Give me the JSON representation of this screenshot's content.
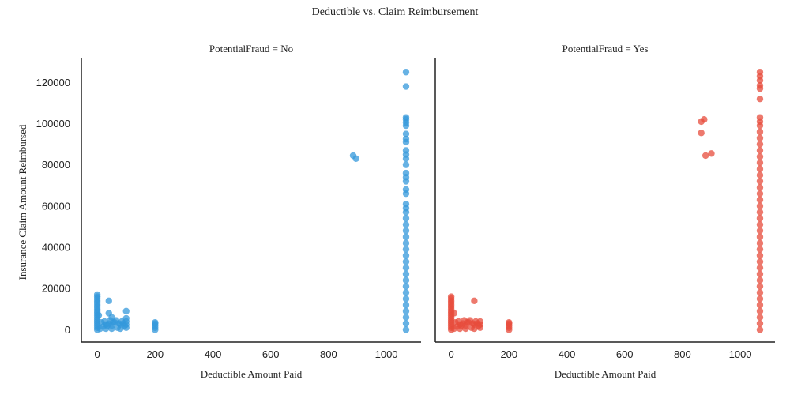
{
  "figure": {
    "title": "Deductible vs. Claim Reimbursement"
  },
  "chart_data": {
    "type": "scatter",
    "xlabel": "Deductible Amount Paid",
    "ylabel": "Insurance Claim Amount Reimbursed",
    "xlim": [
      -55,
      1120
    ],
    "ylim": [
      -6000,
      132000
    ],
    "xticks": [
      0,
      200,
      400,
      600,
      800,
      1000
    ],
    "yticks": [
      0,
      20000,
      40000,
      60000,
      80000,
      100000,
      120000
    ],
    "grid": false,
    "sharey": true,
    "panels": [
      {
        "title": "PotentialFraud = No",
        "color": "#3498db",
        "points": [
          [
            0,
            0
          ],
          [
            0,
            1000
          ],
          [
            0,
            2000
          ],
          [
            0,
            3000
          ],
          [
            0,
            4000
          ],
          [
            0,
            5000
          ],
          [
            0,
            6000
          ],
          [
            0,
            7000
          ],
          [
            0,
            8000
          ],
          [
            0,
            9000
          ],
          [
            0,
            10000
          ],
          [
            0,
            11000
          ],
          [
            0,
            12000
          ],
          [
            0,
            13000
          ],
          [
            0,
            14000
          ],
          [
            0,
            15000
          ],
          [
            0,
            16000
          ],
          [
            0,
            17000
          ],
          [
            5,
            7000
          ],
          [
            10,
            500
          ],
          [
            20,
            1500
          ],
          [
            30,
            2500
          ],
          [
            40,
            3000
          ],
          [
            50,
            2000
          ],
          [
            60,
            3500
          ],
          [
            70,
            1000
          ],
          [
            80,
            2500
          ],
          [
            90,
            3000
          ],
          [
            100,
            4000
          ],
          [
            15,
            3500
          ],
          [
            25,
            4000
          ],
          [
            35,
            2000
          ],
          [
            45,
            4500
          ],
          [
            55,
            3500
          ],
          [
            65,
            4500
          ],
          [
            75,
            3000
          ],
          [
            85,
            4000
          ],
          [
            95,
            2000
          ],
          [
            100,
            1000
          ],
          [
            100,
            2500
          ],
          [
            50,
            500
          ],
          [
            30,
            500
          ],
          [
            80,
            500
          ],
          [
            40,
            14000
          ],
          [
            40,
            8000
          ],
          [
            100,
            9000
          ],
          [
            100,
            5500
          ],
          [
            50,
            6000
          ],
          [
            200,
            0
          ],
          [
            200,
            1000
          ],
          [
            200,
            2000
          ],
          [
            200,
            3000
          ],
          [
            200,
            3500
          ],
          [
            885,
            84500
          ],
          [
            895,
            83000
          ],
          [
            1068,
            0
          ],
          [
            1068,
            3000
          ],
          [
            1068,
            6000
          ],
          [
            1068,
            9000
          ],
          [
            1068,
            12000
          ],
          [
            1068,
            15000
          ],
          [
            1068,
            18000
          ],
          [
            1068,
            21000
          ],
          [
            1068,
            24000
          ],
          [
            1068,
            27000
          ],
          [
            1068,
            30000
          ],
          [
            1068,
            33000
          ],
          [
            1068,
            36000
          ],
          [
            1068,
            39000
          ],
          [
            1068,
            42000
          ],
          [
            1068,
            45000
          ],
          [
            1068,
            48000
          ],
          [
            1068,
            51000
          ],
          [
            1068,
            54000
          ],
          [
            1068,
            57000
          ],
          [
            1068,
            59000
          ],
          [
            1068,
            61000
          ],
          [
            1068,
            66000
          ],
          [
            1068,
            68000
          ],
          [
            1068,
            72000
          ],
          [
            1068,
            74000
          ],
          [
            1068,
            76000
          ],
          [
            1068,
            80000
          ],
          [
            1068,
            83000
          ],
          [
            1068,
            85000
          ],
          [
            1068,
            87000
          ],
          [
            1068,
            91000
          ],
          [
            1068,
            92500
          ],
          [
            1068,
            95000
          ],
          [
            1068,
            99000
          ],
          [
            1068,
            100500
          ],
          [
            1068,
            102000
          ],
          [
            1068,
            103000
          ],
          [
            1068,
            118000
          ],
          [
            1068,
            125000
          ]
        ]
      },
      {
        "title": "PotentialFraud = Yes",
        "color": "#e74c3c",
        "points": [
          [
            0,
            0
          ],
          [
            0,
            1000
          ],
          [
            0,
            2000
          ],
          [
            0,
            3000
          ],
          [
            0,
            4000
          ],
          [
            0,
            5000
          ],
          [
            0,
            6000
          ],
          [
            0,
            7000
          ],
          [
            0,
            8000
          ],
          [
            0,
            9000
          ],
          [
            0,
            10000
          ],
          [
            0,
            11000
          ],
          [
            0,
            12000
          ],
          [
            0,
            13000
          ],
          [
            0,
            14000
          ],
          [
            0,
            15000
          ],
          [
            0,
            16000
          ],
          [
            10,
            8000
          ],
          [
            10,
            500
          ],
          [
            20,
            1500
          ],
          [
            30,
            2500
          ],
          [
            40,
            3000
          ],
          [
            50,
            2000
          ],
          [
            60,
            3500
          ],
          [
            70,
            1000
          ],
          [
            80,
            2500
          ],
          [
            90,
            3000
          ],
          [
            100,
            4000
          ],
          [
            15,
            3500
          ],
          [
            25,
            4000
          ],
          [
            35,
            2000
          ],
          [
            45,
            4500
          ],
          [
            55,
            3500
          ],
          [
            65,
            4500
          ],
          [
            75,
            3000
          ],
          [
            85,
            4000
          ],
          [
            95,
            2000
          ],
          [
            100,
            1000
          ],
          [
            100,
            2500
          ],
          [
            50,
            500
          ],
          [
            30,
            500
          ],
          [
            80,
            500
          ],
          [
            80,
            14000
          ],
          [
            200,
            0
          ],
          [
            200,
            1000
          ],
          [
            200,
            2000
          ],
          [
            200,
            3000
          ],
          [
            200,
            3500
          ],
          [
            865,
            101000
          ],
          [
            875,
            102000
          ],
          [
            865,
            95500
          ],
          [
            880,
            84500
          ],
          [
            900,
            85500
          ],
          [
            1068,
            0
          ],
          [
            1068,
            3000
          ],
          [
            1068,
            6000
          ],
          [
            1068,
            9000
          ],
          [
            1068,
            12000
          ],
          [
            1068,
            15000
          ],
          [
            1068,
            18000
          ],
          [
            1068,
            21000
          ],
          [
            1068,
            24000
          ],
          [
            1068,
            27000
          ],
          [
            1068,
            30000
          ],
          [
            1068,
            33000
          ],
          [
            1068,
            36000
          ],
          [
            1068,
            39000
          ],
          [
            1068,
            42000
          ],
          [
            1068,
            45000
          ],
          [
            1068,
            48000
          ],
          [
            1068,
            51000
          ],
          [
            1068,
            54000
          ],
          [
            1068,
            57000
          ],
          [
            1068,
            60000
          ],
          [
            1068,
            63000
          ],
          [
            1068,
            66000
          ],
          [
            1068,
            69000
          ],
          [
            1068,
            72000
          ],
          [
            1068,
            75000
          ],
          [
            1068,
            78000
          ],
          [
            1068,
            81000
          ],
          [
            1068,
            84000
          ],
          [
            1068,
            87000
          ],
          [
            1068,
            90000
          ],
          [
            1068,
            93000
          ],
          [
            1068,
            96000
          ],
          [
            1068,
            99000
          ],
          [
            1068,
            101000
          ],
          [
            1068,
            103000
          ],
          [
            1068,
            112000
          ],
          [
            1068,
            117000
          ],
          [
            1068,
            118500
          ],
          [
            1068,
            121000
          ],
          [
            1068,
            123000
          ],
          [
            1068,
            125000
          ]
        ]
      }
    ]
  }
}
